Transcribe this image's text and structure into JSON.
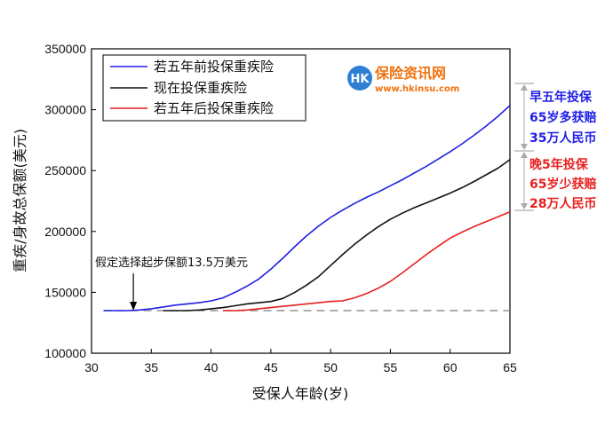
{
  "chart_data": {
    "type": "line",
    "title": "",
    "xlabel": "受保人年龄(岁)",
    "ylabel": "重疾/身故总保额(美元)",
    "xlim": [
      30,
      65
    ],
    "ylim": [
      100000,
      350000
    ],
    "xticks": [
      30,
      35,
      40,
      45,
      50,
      55,
      60,
      65
    ],
    "yticks": [
      100000,
      150000,
      200000,
      250000,
      300000,
      350000
    ],
    "grid": false,
    "legend_position": "top-left",
    "series": [
      {
        "name": "若五年前投保重疾险",
        "color": "#1f1fe6",
        "x": [
          31,
          32,
          33,
          34,
          35,
          36,
          37,
          38,
          39,
          40,
          41,
          42,
          43,
          44,
          45,
          46,
          47,
          48,
          49,
          50,
          51,
          52,
          53,
          54,
          55,
          56,
          57,
          58,
          59,
          60,
          61,
          62,
          63,
          64,
          65
        ],
        "y": [
          135000,
          135000,
          135000,
          135500,
          136500,
          138000,
          139500,
          140500,
          141500,
          143000,
          145500,
          150000,
          155000,
          161000,
          169000,
          178000,
          187500,
          196500,
          204500,
          211500,
          217500,
          223000,
          228000,
          232500,
          237500,
          242500,
          248000,
          253500,
          259500,
          265500,
          272000,
          279000,
          286500,
          294500,
          303500
        ]
      },
      {
        "name": "现在投保重疾险",
        "color": "#111111",
        "x": [
          36,
          37,
          38,
          39,
          40,
          41,
          42,
          43,
          44,
          45,
          46,
          47,
          48,
          49,
          50,
          51,
          52,
          53,
          54,
          55,
          56,
          57,
          58,
          59,
          60,
          61,
          62,
          63,
          64,
          65
        ],
        "y": [
          135000,
          135000,
          135000,
          135500,
          136500,
          137500,
          139000,
          140500,
          141500,
          142500,
          145000,
          150000,
          156000,
          163000,
          172000,
          181000,
          189500,
          197000,
          204000,
          210000,
          215000,
          219500,
          223500,
          227500,
          231500,
          236000,
          241000,
          246500,
          252000,
          259000
        ]
      },
      {
        "name": "若五年后投保重疾险",
        "color": "#e81f1f",
        "x": [
          41,
          42,
          43,
          44,
          45,
          46,
          47,
          48,
          49,
          50,
          51,
          52,
          53,
          54,
          55,
          56,
          57,
          58,
          59,
          60,
          61,
          62,
          63,
          64,
          65
        ],
        "y": [
          135000,
          135000,
          135500,
          136500,
          137500,
          138500,
          139500,
          140500,
          141500,
          142500,
          143000,
          145500,
          149000,
          153500,
          159000,
          166000,
          173500,
          181000,
          188000,
          194500,
          199500,
          204000,
          208000,
          212000,
          216000
        ]
      }
    ],
    "baseline": {
      "y": 135000,
      "style": "dashed",
      "color": "#888888"
    },
    "annotations": [
      {
        "text": "假定选择起步保额13.5万美元",
        "arrow_to_x": 33.5,
        "arrow_to_y": 135000
      }
    ],
    "side_notes": [
      {
        "lines": [
          "早五年投保",
          "65岁多获赔",
          "35万人民币"
        ],
        "color": "#1f1fe6"
      },
      {
        "lines": [
          "晚5年投保",
          "65岁少获赔",
          "28万人民币"
        ],
        "color": "#e81f1f"
      }
    ]
  },
  "logo": {
    "badge": "HK",
    "name": "保险资讯网",
    "url": "www.hkinsu.com",
    "badge_color": "#2e7fd3",
    "name_color": "#f0720f"
  }
}
